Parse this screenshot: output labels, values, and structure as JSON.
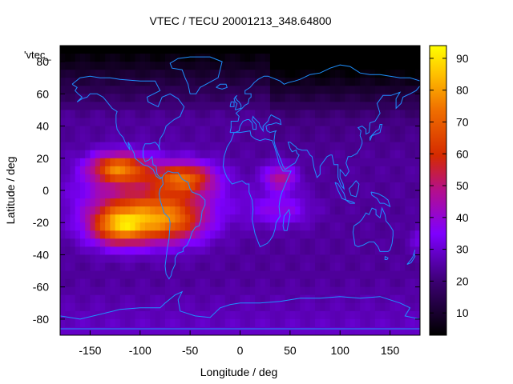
{
  "chart_data": {
    "type": "heatmap",
    "title": "VTEC / TECU 20001213_348.64800",
    "xlabel": "Longitude / deg",
    "ylabel": "Latitude / deg",
    "legend_label": "'vtec_",
    "xlim": [
      -180,
      180
    ],
    "ylim": [
      -90,
      90
    ],
    "x_ticks": [
      -150,
      -100,
      -50,
      0,
      50,
      100,
      150
    ],
    "y_ticks": [
      -80,
      -60,
      -40,
      -20,
      0,
      20,
      40,
      60,
      80
    ],
    "colorbar": {
      "range": [
        3,
        94
      ],
      "ticks": [
        10,
        20,
        30,
        40,
        50,
        60,
        70,
        80,
        90
      ],
      "palette": "black-purple-red-orange-yellow"
    },
    "features": [
      {
        "name": "equatorial-anomaly-north",
        "lon": -120,
        "lat": 15,
        "value": 72
      },
      {
        "name": "equatorial-anomaly-south",
        "lon": -120,
        "lat": -22,
        "value": 75
      },
      {
        "name": "atlantic-crest-north",
        "lon": -50,
        "lat": 10,
        "value": 65
      },
      {
        "name": "atlantic-crest-south",
        "lon": -50,
        "lat": -15,
        "value": 62
      },
      {
        "name": "africa-east-band",
        "lon": 40,
        "lat": 10,
        "value": 50
      },
      {
        "name": "background",
        "lon": 100,
        "lat": 0,
        "value": 25
      },
      {
        "name": "polar-night-north",
        "lon": 60,
        "lat": 80,
        "value": 5
      }
    ]
  }
}
